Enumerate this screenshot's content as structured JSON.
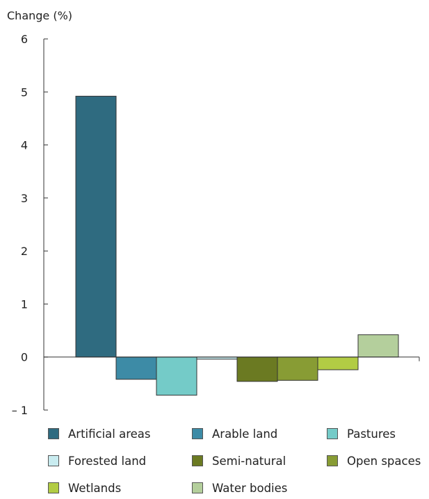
{
  "chart_data": {
    "type": "bar",
    "ylabel": "Change (%)",
    "ylim": [
      -1,
      6
    ],
    "yticks": [
      6,
      5,
      4,
      3,
      2,
      1,
      0,
      -1
    ],
    "ytick_labels": [
      "6",
      "5",
      "4",
      "3",
      "2",
      "1",
      "0",
      "– 1"
    ],
    "grid": false,
    "legend_position": "bottom",
    "categories": [
      "Artificial areas",
      "Arable land",
      "Pastures",
      "Forested land",
      "Semi-natural",
      "Open spaces",
      "Wetlands",
      "Water bodies"
    ],
    "values": [
      4.92,
      -0.42,
      -0.72,
      -0.04,
      -0.46,
      -0.44,
      -0.24,
      0.42
    ],
    "colors": [
      "#2f6b80",
      "#3d8ba6",
      "#74cbc8",
      "#c9ecf0",
      "#6b7a22",
      "#889c34",
      "#b2cc44",
      "#b4cf9c"
    ]
  }
}
